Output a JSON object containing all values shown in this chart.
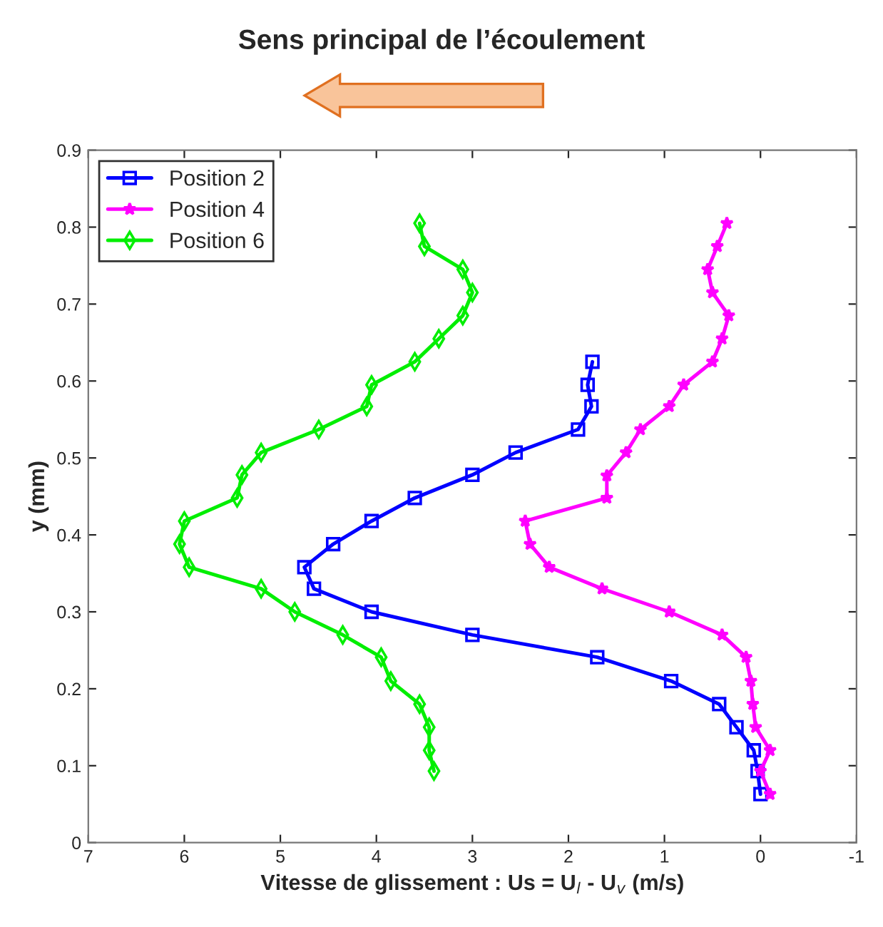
{
  "chart_data": {
    "type": "line",
    "title": "Sens principal de l’écoulement",
    "xlabel": "Vitesse de glissement : Us = U$_{l}$ - U$_{v}$ (m/s)",
    "ylabel": "y (mm)",
    "xlim": [
      7,
      -1
    ],
    "xticks": [
      7,
      6,
      5,
      4,
      3,
      2,
      1,
      0,
      -1
    ],
    "ylim": [
      0,
      0.9
    ],
    "yticks": [
      0,
      0.1,
      0.2,
      0.3,
      0.4,
      0.5,
      0.6,
      0.7,
      0.8,
      0.9
    ],
    "grid": false,
    "legend": "top left",
    "line_style": "solid",
    "series": [
      {
        "name": "Position 2",
        "color": "#0000ff",
        "marker": "square",
        "x": [
          1.75,
          1.8,
          1.76,
          1.9,
          2.55,
          3.0,
          3.6,
          4.05,
          4.45,
          4.75,
          4.65,
          4.05,
          3.0,
          1.7,
          0.93,
          0.43,
          0.25,
          0.07,
          0.03,
          0.0
        ],
        "values": [
          0.625,
          0.595,
          0.567,
          0.537,
          0.507,
          0.478,
          0.448,
          0.418,
          0.388,
          0.358,
          0.33,
          0.3,
          0.27,
          0.241,
          0.21,
          0.18,
          0.15,
          0.12,
          0.093,
          0.063
        ]
      },
      {
        "name": "Position 4",
        "color": "#ff00ff",
        "marker": "star",
        "x": [
          0.35,
          0.45,
          0.55,
          0.5,
          0.33,
          0.4,
          0.5,
          0.8,
          0.95,
          1.25,
          1.4,
          1.6,
          1.6,
          2.45,
          2.4,
          2.2,
          1.65,
          0.95,
          0.4,
          0.15,
          0.1,
          0.08,
          0.05,
          -0.1,
          0.0,
          -0.1
        ],
        "values": [
          0.805,
          0.775,
          0.745,
          0.715,
          0.685,
          0.655,
          0.625,
          0.595,
          0.567,
          0.537,
          0.507,
          0.477,
          0.448,
          0.418,
          0.388,
          0.358,
          0.33,
          0.3,
          0.27,
          0.241,
          0.21,
          0.18,
          0.15,
          0.12,
          0.093,
          0.063
        ]
      },
      {
        "name": "Position 6",
        "color": "#00ee00",
        "marker": "diamond",
        "x": [
          3.55,
          3.5,
          3.1,
          3.0,
          3.1,
          3.35,
          3.6,
          4.05,
          4.1,
          4.6,
          5.2,
          5.4,
          5.45,
          6.0,
          6.05,
          5.95,
          5.2,
          4.85,
          4.35,
          3.95,
          3.85,
          3.55,
          3.45,
          3.45,
          3.4
        ],
        "values": [
          0.805,
          0.775,
          0.745,
          0.715,
          0.685,
          0.655,
          0.625,
          0.595,
          0.567,
          0.537,
          0.507,
          0.478,
          0.448,
          0.418,
          0.388,
          0.358,
          0.33,
          0.3,
          0.27,
          0.241,
          0.21,
          0.18,
          0.15,
          0.12,
          0.093
        ]
      }
    ]
  }
}
